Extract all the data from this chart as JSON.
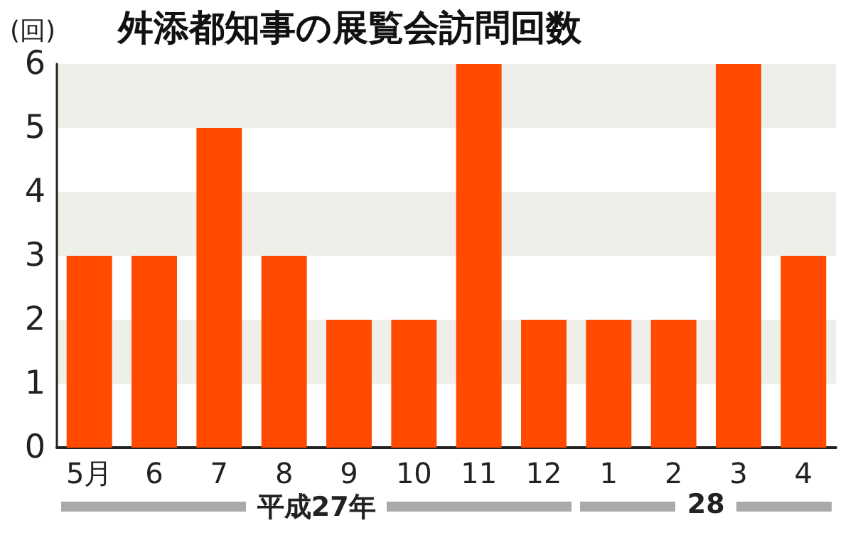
{
  "chart_data": {
    "type": "bar",
    "title": "舛添都知事の展覧会訪問回数",
    "ylabel": "(回)",
    "categories": [
      "5月",
      "6",
      "7",
      "8",
      "9",
      "10",
      "11",
      "12",
      "1",
      "2",
      "3",
      "4"
    ],
    "values": [
      3,
      3,
      5,
      3,
      2,
      2,
      6,
      2,
      2,
      2,
      6,
      3
    ],
    "color": "#ff4a00",
    "ylim": [
      0,
      6
    ],
    "yticks": [
      0,
      1,
      2,
      3,
      4,
      5,
      6
    ],
    "bands": [
      {
        "axis": "y",
        "from": 1,
        "to": 2,
        "color": "#efefe9"
      },
      {
        "axis": "y",
        "from": 3,
        "to": 4,
        "color": "#efefe9"
      },
      {
        "axis": "y",
        "from": 5,
        "to": 6,
        "color": "#efefe9"
      }
    ],
    "annotations": [
      "平成27年",
      "28"
    ]
  }
}
